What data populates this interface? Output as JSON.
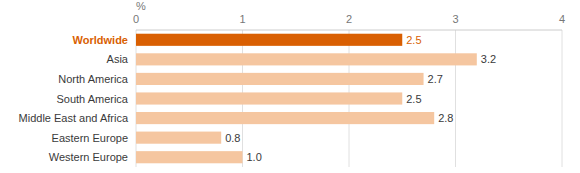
{
  "chart_data": {
    "type": "bar",
    "orientation": "horizontal",
    "x_label": "%",
    "categories": [
      "Worldwide",
      "Asia",
      "North America",
      "South America",
      "Middle East and Africa",
      "Eastern Europe",
      "Western Europe"
    ],
    "values": [
      2.5,
      3.2,
      2.7,
      2.5,
      2.8,
      0.8,
      1.0
    ],
    "value_labels": [
      "2.5",
      "3.2",
      "2.7",
      "2.5",
      "2.8",
      "0.8",
      "1.0"
    ],
    "colors": [
      "#d95f02",
      "#f5c6a0",
      "#f5c6a0",
      "#f5c6a0",
      "#f5c6a0",
      "#f5c6a0",
      "#f5c6a0"
    ],
    "xlim": [
      0,
      4
    ],
    "xticks": [
      0,
      1,
      2,
      3,
      4
    ],
    "grid": true,
    "data_labels": true
  }
}
